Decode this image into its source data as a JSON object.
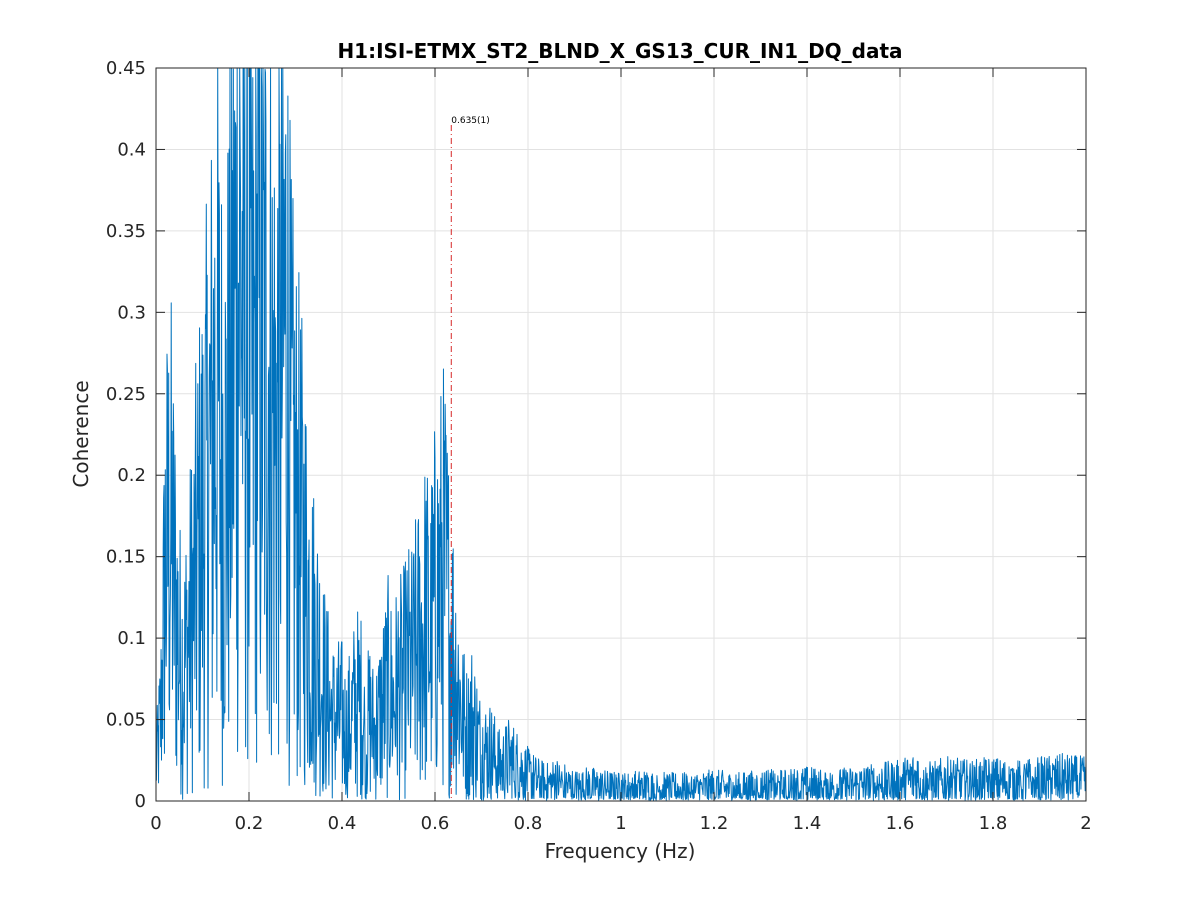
{
  "chart_data": {
    "type": "line",
    "title": "H1:ISI-ETMX_ST2_BLND_X_GS13_CUR_IN1_DQ_data",
    "xlabel": "Frequency (Hz)",
    "ylabel": "Coherence",
    "xlim": [
      0,
      2
    ],
    "ylim": [
      0,
      0.45
    ],
    "xticks": [
      0,
      0.2,
      0.4,
      0.6,
      0.8,
      1,
      1.2,
      1.4,
      1.6,
      1.8,
      2
    ],
    "xtick_labels": [
      "0",
      "0.2",
      "0.4",
      "0.6",
      "0.8",
      "1",
      "1.2",
      "1.4",
      "1.6",
      "1.8",
      "2"
    ],
    "yticks": [
      0,
      0.05,
      0.1,
      0.15,
      0.2,
      0.25,
      0.3,
      0.35,
      0.4,
      0.45
    ],
    "ytick_labels": [
      "0",
      "0.05",
      "0.1",
      "0.15",
      "0.2",
      "0.25",
      "0.3",
      "0.35",
      "0.4",
      "0.45"
    ],
    "grid": true,
    "legend": "none",
    "series": [
      {
        "color": "#0072BD",
        "x": [
          0.0,
          0.01,
          0.02,
          0.03,
          0.04,
          0.05,
          0.06,
          0.07,
          0.08,
          0.09,
          0.1,
          0.11,
          0.12,
          0.13,
          0.14,
          0.15,
          0.16,
          0.17,
          0.18,
          0.19,
          0.2,
          0.21,
          0.22,
          0.23,
          0.24,
          0.25,
          0.26,
          0.27,
          0.28,
          0.29,
          0.3,
          0.31,
          0.32,
          0.33,
          0.34,
          0.35,
          0.36,
          0.37,
          0.38,
          0.39,
          0.4,
          0.41,
          0.42,
          0.43,
          0.44,
          0.45,
          0.46,
          0.47,
          0.48,
          0.49,
          0.5,
          0.51,
          0.52,
          0.53,
          0.54,
          0.55,
          0.56,
          0.57,
          0.58,
          0.59,
          0.6,
          0.61,
          0.62,
          0.63,
          0.64,
          0.65,
          0.66,
          0.67,
          0.68,
          0.69,
          0.7,
          0.72,
          0.74,
          0.76,
          0.78,
          0.8,
          0.82,
          0.84,
          0.86,
          0.88,
          0.9,
          0.93,
          0.96,
          1.0,
          1.05,
          1.1,
          1.15,
          1.2,
          1.25,
          1.3,
          1.35,
          1.4,
          1.45,
          1.5,
          1.55,
          1.6,
          1.64,
          1.65,
          1.7,
          1.75,
          1.8,
          1.85,
          1.9,
          1.95,
          2.0
        ],
        "y": [
          0.02,
          0.05,
          0.14,
          0.17,
          0.13,
          0.09,
          0.08,
          0.1,
          0.12,
          0.15,
          0.17,
          0.19,
          0.22,
          0.26,
          0.21,
          0.2,
          0.24,
          0.3,
          0.33,
          0.29,
          0.26,
          0.25,
          0.3,
          0.27,
          0.28,
          0.24,
          0.23,
          0.27,
          0.29,
          0.2,
          0.18,
          0.16,
          0.14,
          0.12,
          0.1,
          0.09,
          0.07,
          0.06,
          0.05,
          0.05,
          0.05,
          0.04,
          0.05,
          0.06,
          0.06,
          0.04,
          0.05,
          0.04,
          0.05,
          0.06,
          0.07,
          0.06,
          0.07,
          0.07,
          0.08,
          0.08,
          0.09,
          0.1,
          0.11,
          0.1,
          0.12,
          0.13,
          0.14,
          0.11,
          0.09,
          0.07,
          0.05,
          0.04,
          0.05,
          0.04,
          0.03,
          0.03,
          0.02,
          0.025,
          0.02,
          0.015,
          0.012,
          0.01,
          0.012,
          0.01,
          0.008,
          0.009,
          0.008,
          0.007,
          0.008,
          0.007,
          0.007,
          0.008,
          0.007,
          0.008,
          0.008,
          0.009,
          0.008,
          0.009,
          0.01,
          0.011,
          0.015,
          0.01,
          0.012,
          0.011,
          0.012,
          0.011,
          0.012,
          0.013,
          0.012
        ]
      }
    ],
    "annotations": [
      {
        "x": 0.635,
        "label": "0.635(1)",
        "y_top": 0.415,
        "color": "#d62728",
        "style": "dash-dot"
      }
    ]
  }
}
